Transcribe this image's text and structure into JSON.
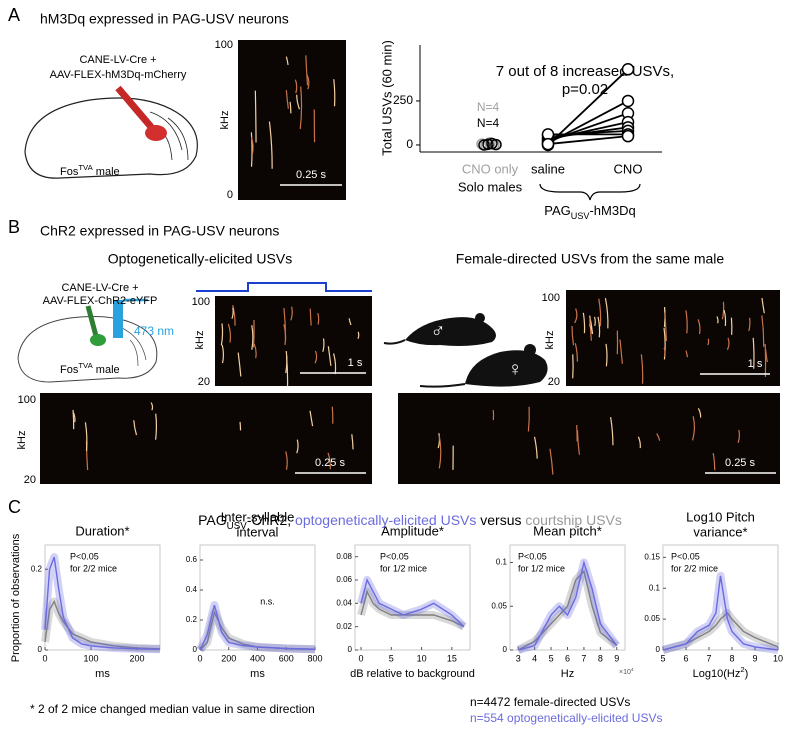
{
  "panel_a": {
    "letter": "A",
    "title": "hM3Dq expressed in PAG-USV neurons",
    "virus": [
      "CANE-LV-Cre +",
      "AAV-FLEX-hM3Dq-mCherry"
    ],
    "mouse": {
      "label": "Fos",
      "sup": "TVA",
      "suffix": " male"
    },
    "spectrogram": {
      "y_label": "kHz",
      "y_top": "100",
      "y_bottom": "0",
      "scale": "0.25 s"
    },
    "chart": {
      "type": "paired-scatter",
      "y_label": "Total USVs (60 min)",
      "annotation": [
        "7 out of 8 increased USVs,",
        "p=0.02"
      ],
      "ylim": [
        -40,
        568
      ],
      "yticks": [
        0,
        250
      ],
      "control": {
        "labels": [
          "CNO only",
          "Solo males"
        ],
        "n_labels": [
          "N=4",
          "N=4"
        ],
        "colors": [
          "#a0a0a0",
          "#000000"
        ],
        "values": [
          [
            5,
            0,
            12,
            3
          ],
          [
            0,
            4,
            8,
            2
          ]
        ]
      },
      "paired": {
        "categories": [
          "saline",
          "CNO"
        ],
        "group_label": {
          "main": "PAG",
          "sub": "USV",
          "suffix": "-hM3Dq"
        },
        "color": "#000000",
        "values": [
          [
            0,
            10,
            20,
            30,
            40,
            55,
            60,
            5
          ],
          [
            430,
            250,
            180,
            130,
            100,
            80,
            60,
            50
          ]
        ]
      }
    }
  },
  "panel_b": {
    "letter": "B",
    "title": "ChR2 expressed in PAG-USV neurons",
    "left_title": "Optogenetically-elicited USVs",
    "right_title": "Female-directed USVs from the same male",
    "virus": [
      "CANE-LV-Cre +",
      "AAV-FLEX-ChR2-eYFP"
    ],
    "laser": "473 nm",
    "mouse": {
      "label": "Fos",
      "sup": "TVA",
      "suffix": " male"
    },
    "symbols": [
      "♂",
      "♀"
    ],
    "spectrograms": [
      {
        "y_label": "kHz",
        "y_top": "100",
        "y_bottom": "20",
        "scale": "1 s"
      },
      {
        "y_label": "kHz",
        "y_top": "100",
        "y_bottom": "20",
        "scale": "0.25 s"
      },
      {
        "y_label": "kHz",
        "y_top": "100",
        "y_bottom": "20",
        "scale": "1 s"
      },
      {
        "scale": "0.25 s"
      }
    ]
  },
  "panel_c": {
    "letter": "C",
    "title": {
      "main": "PAG",
      "sub": "USV",
      "part1": "-ChR2, ",
      "opto": "optogenetically-elicited USVs",
      "part2": " versus ",
      "courtship": "courtship USVs"
    },
    "y_label": "Proportion of observations",
    "colors": {
      "courtship": "#808080",
      "opto": "#6b6be0"
    },
    "plots": [
      {
        "title": [
          "Duration*"
        ],
        "stat": [
          "P<0.05",
          "for 2/2 mice"
        ],
        "x_label": "ms",
        "xlim": [
          0,
          250
        ],
        "xticks": [
          0,
          100,
          200
        ],
        "ylim": [
          0,
          0.26
        ],
        "yticks": [
          0,
          0.2
        ],
        "x": [
          0,
          10,
          20,
          30,
          40,
          60,
          80,
          100,
          150,
          200,
          250
        ],
        "courtship": [
          0.02,
          0.1,
          0.12,
          0.09,
          0.07,
          0.04,
          0.03,
          0.02,
          0.01,
          0.005,
          0.003
        ],
        "opto": [
          0.05,
          0.2,
          0.23,
          0.15,
          0.08,
          0.03,
          0.015,
          0.01,
          0.005,
          0.003,
          0.002
        ]
      },
      {
        "title": [
          "Inter-syllable",
          "interval"
        ],
        "stat": [
          "n.s."
        ],
        "x_label": "ms",
        "xlim": [
          0,
          800
        ],
        "xticks": [
          0,
          200,
          400,
          600,
          800
        ],
        "ylim": [
          0,
          0.7
        ],
        "yticks": [
          0,
          0.2,
          0.4,
          0.6
        ],
        "x": [
          0,
          50,
          100,
          150,
          200,
          300,
          400,
          600,
          800
        ],
        "courtship": [
          0,
          0.05,
          0.25,
          0.15,
          0.08,
          0.04,
          0.02,
          0.01,
          0.005
        ],
        "opto": [
          0,
          0.1,
          0.3,
          0.12,
          0.05,
          0.03,
          0.02,
          0.01,
          0.005
        ]
      },
      {
        "title": [
          "Amplitude*"
        ],
        "stat": [
          "P<0.05",
          "for 1/2 mice"
        ],
        "x_label": "dB relative to background",
        "xlim": [
          -1,
          18
        ],
        "xticks": [
          0,
          5,
          10,
          15
        ],
        "ylim": [
          0,
          0.09
        ],
        "yticks": [
          0,
          0.02,
          0.04,
          0.06,
          0.08
        ],
        "x": [
          0,
          1,
          2,
          3,
          5,
          7,
          10,
          12,
          15,
          17
        ],
        "courtship": [
          0.03,
          0.05,
          0.04,
          0.035,
          0.03,
          0.03,
          0.03,
          0.03,
          0.025,
          0.02
        ],
        "opto": [
          0.04,
          0.06,
          0.05,
          0.04,
          0.035,
          0.03,
          0.035,
          0.04,
          0.03,
          0.02
        ]
      },
      {
        "title": [
          "Mean pitch*"
        ],
        "stat": [
          "P<0.05",
          "for 1/2 mice"
        ],
        "x_label": "Hz",
        "x_multiplier": {
          "main": "×10",
          "sup": "4"
        },
        "xlim": [
          2.5,
          9.5
        ],
        "xticks": [
          3,
          4,
          5,
          6,
          7,
          8,
          9
        ],
        "ylim": [
          0,
          0.12
        ],
        "yticks": [
          0,
          0.05,
          0.1
        ],
        "x": [
          3,
          4,
          5,
          5.5,
          6,
          6.5,
          7,
          7.5,
          8,
          9
        ],
        "courtship": [
          0,
          0.01,
          0.03,
          0.04,
          0.05,
          0.08,
          0.09,
          0.05,
          0.02,
          0.005
        ],
        "opto": [
          0,
          0.005,
          0.04,
          0.05,
          0.04,
          0.06,
          0.1,
          0.07,
          0.03,
          0.005
        ]
      },
      {
        "title": [
          "Log10 Pitch",
          "variance*"
        ],
        "stat": [
          "P<0.05",
          "for 2/2 mice"
        ],
        "x_label": {
          "main": "Log10(Hz",
          "sup": "2",
          "suffix": ")"
        },
        "xlim": [
          5,
          10
        ],
        "xticks": [
          5,
          6,
          7,
          8,
          9,
          10
        ],
        "ylim": [
          0,
          0.17
        ],
        "yticks": [
          0,
          0.05,
          0.1,
          0.15
        ],
        "x": [
          5,
          6,
          6.5,
          7,
          7.3,
          7.5,
          7.8,
          8,
          8.5,
          9,
          10
        ],
        "courtship": [
          0,
          0.01,
          0.02,
          0.03,
          0.04,
          0.05,
          0.06,
          0.05,
          0.03,
          0.02,
          0.005
        ],
        "opto": [
          0,
          0.01,
          0.03,
          0.04,
          0.06,
          0.12,
          0.05,
          0.03,
          0.01,
          0.005,
          0
        ]
      }
    ],
    "footnote": "* 2 of 2 mice changed median value in same direction",
    "legend": [
      "n=4472 female-directed USVs",
      "n=554 optogenetically-elicited USVs"
    ]
  }
}
